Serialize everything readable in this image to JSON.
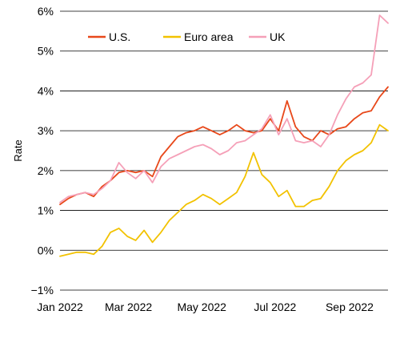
{
  "chart_data": {
    "type": "line",
    "title": "",
    "xlabel": "",
    "ylabel": "Rate",
    "ylim": [
      -1,
      6
    ],
    "yticks": [
      -1,
      0,
      1,
      2,
      3,
      4,
      5,
      6
    ],
    "ytick_labels": [
      "−1%",
      "0%",
      "1%",
      "2%",
      "3%",
      "4%",
      "5%",
      "6%"
    ],
    "xlim": [
      "2022-01-03",
      "2022-10-03"
    ],
    "xticks": [
      "2022-01-03",
      "2022-03-01",
      "2022-05-01",
      "2022-07-01",
      "2022-09-01"
    ],
    "xtick_labels": [
      "Jan 2022",
      "Mar 2022",
      "May 2022",
      "Jul 2022",
      "Sep 2022"
    ],
    "grid": "horizontal",
    "legend_position": "top-left",
    "series": [
      {
        "name": "U.S.",
        "color": "#e8481a",
        "x": [
          "2022-01-03",
          "2022-01-10",
          "2022-01-17",
          "2022-01-24",
          "2022-01-31",
          "2022-02-07",
          "2022-02-14",
          "2022-02-21",
          "2022-02-28",
          "2022-03-07",
          "2022-03-14",
          "2022-03-21",
          "2022-03-28",
          "2022-04-04",
          "2022-04-11",
          "2022-04-18",
          "2022-04-25",
          "2022-05-02",
          "2022-05-09",
          "2022-05-16",
          "2022-05-23",
          "2022-05-30",
          "2022-06-06",
          "2022-06-13",
          "2022-06-20",
          "2022-06-27",
          "2022-07-04",
          "2022-07-11",
          "2022-07-18",
          "2022-07-25",
          "2022-08-01",
          "2022-08-08",
          "2022-08-15",
          "2022-08-22",
          "2022-08-29",
          "2022-09-05",
          "2022-09-12",
          "2022-09-19",
          "2022-09-26",
          "2022-10-03"
        ],
        "values": [
          1.15,
          1.3,
          1.4,
          1.45,
          1.35,
          1.6,
          1.75,
          1.95,
          2.0,
          1.95,
          2.0,
          1.85,
          2.35,
          2.6,
          2.85,
          2.95,
          3.0,
          3.1,
          3.0,
          2.9,
          3.0,
          3.15,
          3.0,
          2.95,
          3.0,
          3.3,
          3.0,
          3.75,
          3.1,
          2.85,
          2.75,
          3.0,
          2.9,
          3.05,
          3.1,
          3.3,
          3.45,
          3.5,
          3.85,
          4.1
        ]
      },
      {
        "name": "Euro area",
        "color": "#f2c200",
        "x": [
          "2022-01-03",
          "2022-01-10",
          "2022-01-17",
          "2022-01-24",
          "2022-01-31",
          "2022-02-07",
          "2022-02-14",
          "2022-02-21",
          "2022-02-28",
          "2022-03-07",
          "2022-03-14",
          "2022-03-21",
          "2022-03-28",
          "2022-04-04",
          "2022-04-11",
          "2022-04-18",
          "2022-04-25",
          "2022-05-02",
          "2022-05-09",
          "2022-05-16",
          "2022-05-23",
          "2022-05-30",
          "2022-06-06",
          "2022-06-13",
          "2022-06-20",
          "2022-06-27",
          "2022-07-04",
          "2022-07-11",
          "2022-07-18",
          "2022-07-25",
          "2022-08-01",
          "2022-08-08",
          "2022-08-15",
          "2022-08-22",
          "2022-08-29",
          "2022-09-05",
          "2022-09-12",
          "2022-09-19",
          "2022-09-26",
          "2022-10-03"
        ],
        "values": [
          -0.15,
          -0.1,
          -0.05,
          -0.05,
          -0.1,
          0.1,
          0.45,
          0.55,
          0.35,
          0.25,
          0.5,
          0.2,
          0.45,
          0.75,
          0.95,
          1.15,
          1.25,
          1.4,
          1.3,
          1.15,
          1.3,
          1.45,
          1.85,
          2.45,
          1.9,
          1.7,
          1.35,
          1.5,
          1.1,
          1.1,
          1.25,
          1.3,
          1.6,
          2.0,
          2.25,
          2.4,
          2.5,
          2.7,
          3.15,
          3.0
        ]
      },
      {
        "name": "UK",
        "color": "#f5a0b8",
        "x": [
          "2022-01-03",
          "2022-01-10",
          "2022-01-17",
          "2022-01-24",
          "2022-01-31",
          "2022-02-07",
          "2022-02-14",
          "2022-02-21",
          "2022-02-28",
          "2022-03-07",
          "2022-03-14",
          "2022-03-21",
          "2022-03-28",
          "2022-04-04",
          "2022-04-11",
          "2022-04-18",
          "2022-04-25",
          "2022-05-02",
          "2022-05-09",
          "2022-05-16",
          "2022-05-23",
          "2022-05-30",
          "2022-06-06",
          "2022-06-13",
          "2022-06-20",
          "2022-06-27",
          "2022-07-04",
          "2022-07-11",
          "2022-07-18",
          "2022-07-25",
          "2022-08-01",
          "2022-08-08",
          "2022-08-15",
          "2022-08-22",
          "2022-08-29",
          "2022-09-05",
          "2022-09-12",
          "2022-09-19",
          "2022-09-26",
          "2022-10-03"
        ],
        "values": [
          1.2,
          1.35,
          1.4,
          1.45,
          1.4,
          1.55,
          1.75,
          2.2,
          1.95,
          1.8,
          2.0,
          1.7,
          2.1,
          2.3,
          2.4,
          2.5,
          2.6,
          2.65,
          2.55,
          2.4,
          2.5,
          2.7,
          2.75,
          2.9,
          3.05,
          3.4,
          2.9,
          3.3,
          2.75,
          2.7,
          2.75,
          2.6,
          2.9,
          3.4,
          3.8,
          4.1,
          4.2,
          4.4,
          5.9,
          5.7
        ]
      }
    ]
  }
}
